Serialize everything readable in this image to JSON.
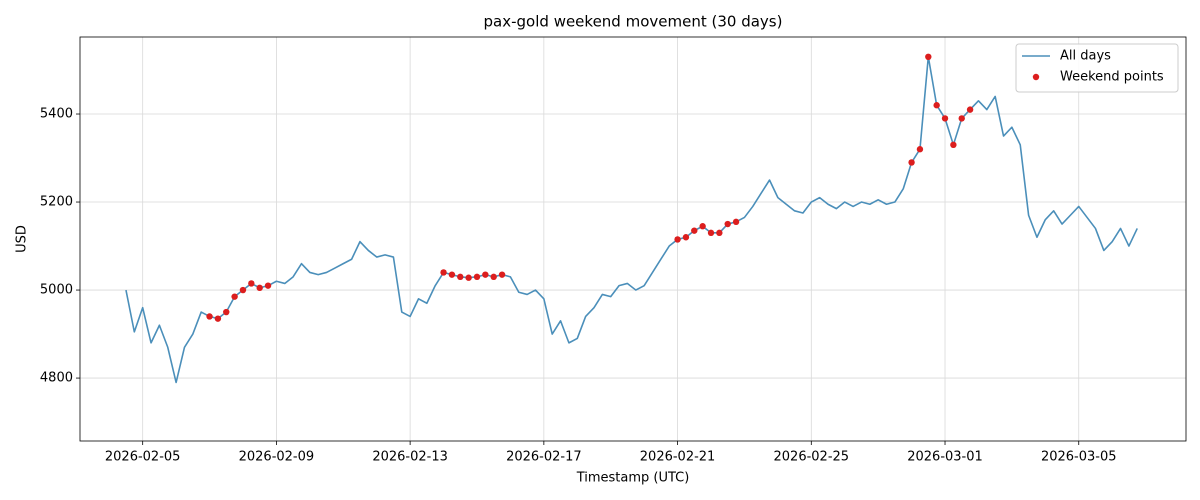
{
  "chart_data": {
    "type": "line",
    "title": "pax-gold weekend movement (30 days)",
    "x_label": "Timestamp (UTC)",
    "y_label": "USD",
    "xlim": [
      "2026-02-03 03:00",
      "2026-03-08 05:00"
    ],
    "ylim": [
      4657,
      5575
    ],
    "xticks": [
      "2026-02-05",
      "2026-02-09",
      "2026-02-13",
      "2026-02-17",
      "2026-02-21",
      "2026-02-25",
      "2026-03-01",
      "2026-03-05"
    ],
    "yticks": [
      4800,
      5000,
      5200,
      5400
    ],
    "grid": true,
    "legend": "upper right",
    "series": [
      {
        "name": "All days",
        "type": "line",
        "color": "#4b8fba",
        "x": [
          "2026-02-04 12:00",
          "2026-02-04 18:00",
          "2026-02-05 00:00",
          "2026-02-05 06:00",
          "2026-02-05 12:00",
          "2026-02-05 18:00",
          "2026-02-06 00:00",
          "2026-02-06 06:00",
          "2026-02-06 12:00",
          "2026-02-06 18:00",
          "2026-02-07 00:00",
          "2026-02-07 06:00",
          "2026-02-07 12:00",
          "2026-02-07 18:00",
          "2026-02-08 00:00",
          "2026-02-08 06:00",
          "2026-02-08 12:00",
          "2026-02-08 18:00",
          "2026-02-09 00:00",
          "2026-02-09 06:00",
          "2026-02-09 12:00",
          "2026-02-09 18:00",
          "2026-02-10 00:00",
          "2026-02-10 06:00",
          "2026-02-10 12:00",
          "2026-02-10 18:00",
          "2026-02-11 00:00",
          "2026-02-11 06:00",
          "2026-02-11 12:00",
          "2026-02-11 18:00",
          "2026-02-12 00:00",
          "2026-02-12 06:00",
          "2026-02-12 12:00",
          "2026-02-12 18:00",
          "2026-02-13 00:00",
          "2026-02-13 06:00",
          "2026-02-13 12:00",
          "2026-02-13 18:00",
          "2026-02-14 00:00",
          "2026-02-14 06:00",
          "2026-02-14 12:00",
          "2026-02-14 18:00",
          "2026-02-15 00:00",
          "2026-02-15 06:00",
          "2026-02-15 12:00",
          "2026-02-15 18:00",
          "2026-02-16 00:00",
          "2026-02-16 06:00",
          "2026-02-16 12:00",
          "2026-02-16 18:00",
          "2026-02-17 00:00",
          "2026-02-17 06:00",
          "2026-02-17 12:00",
          "2026-02-17 18:00",
          "2026-02-18 00:00",
          "2026-02-18 06:00",
          "2026-02-18 12:00",
          "2026-02-18 18:00",
          "2026-02-19 00:00",
          "2026-02-19 06:00",
          "2026-02-19 12:00",
          "2026-02-19 18:00",
          "2026-02-20 00:00",
          "2026-02-20 06:00",
          "2026-02-20 12:00",
          "2026-02-20 18:00",
          "2026-02-21 00:00",
          "2026-02-21 06:00",
          "2026-02-21 12:00",
          "2026-02-21 18:00",
          "2026-02-22 00:00",
          "2026-02-22 06:00",
          "2026-02-22 12:00",
          "2026-02-22 18:00",
          "2026-02-23 00:00",
          "2026-02-23 06:00",
          "2026-02-23 12:00",
          "2026-02-23 18:00",
          "2026-02-24 00:00",
          "2026-02-24 06:00",
          "2026-02-24 12:00",
          "2026-02-24 18:00",
          "2026-02-25 00:00",
          "2026-02-25 06:00",
          "2026-02-25 12:00",
          "2026-02-25 18:00",
          "2026-02-26 00:00",
          "2026-02-26 06:00",
          "2026-02-26 12:00",
          "2026-02-26 18:00",
          "2026-02-27 00:00",
          "2026-02-27 06:00",
          "2026-02-27 12:00",
          "2026-02-27 18:00",
          "2026-02-28 00:00",
          "2026-02-28 06:00",
          "2026-02-28 12:00",
          "2026-02-28 18:00",
          "2026-03-01 00:00",
          "2026-03-01 06:00",
          "2026-03-01 12:00",
          "2026-03-01 18:00",
          "2026-03-02 00:00",
          "2026-03-02 06:00",
          "2026-03-02 12:00",
          "2026-03-02 18:00",
          "2026-03-03 00:00",
          "2026-03-03 06:00",
          "2026-03-03 12:00",
          "2026-03-03 18:00",
          "2026-03-04 00:00",
          "2026-03-04 06:00",
          "2026-03-04 12:00",
          "2026-03-04 18:00",
          "2026-03-05 00:00",
          "2026-03-05 06:00",
          "2026-03-05 12:00",
          "2026-03-05 18:00",
          "2026-03-06 00:00",
          "2026-03-06 06:00",
          "2026-03-06 12:00",
          "2026-03-06 18:00"
        ],
        "values": [
          5000,
          4905,
          4960,
          4880,
          4920,
          4870,
          4790,
          4870,
          4900,
          4950,
          4940,
          4935,
          4950,
          4985,
          5000,
          5015,
          5005,
          5010,
          5020,
          5015,
          5030,
          5060,
          5040,
          5035,
          5040,
          5050,
          5060,
          5070,
          5110,
          5090,
          5075,
          5080,
          5075,
          4950,
          4940,
          4980,
          4970,
          5010,
          5040,
          5035,
          5030,
          5028,
          5030,
          5035,
          5030,
          5035,
          5030,
          4995,
          4990,
          5000,
          4980,
          4900,
          4930,
          4880,
          4890,
          4940,
          4960,
          4990,
          4985,
          5010,
          5015,
          5000,
          5010,
          5040,
          5070,
          5100,
          5115,
          5120,
          5135,
          5145,
          5130,
          5130,
          5150,
          5155,
          5165,
          5190,
          5220,
          5250,
          5210,
          5195,
          5180,
          5175,
          5200,
          5210,
          5195,
          5185,
          5200,
          5190,
          5200,
          5195,
          5205,
          5195,
          5200,
          5230,
          5290,
          5320,
          5530,
          5420,
          5390,
          5330,
          5390,
          5410,
          5430,
          5410,
          5440,
          5350,
          5370,
          5330,
          5170,
          5120,
          5160,
          5180,
          5150,
          5170,
          5190,
          5165,
          5140,
          5090,
          5110,
          5140,
          5100,
          5140
        ]
      },
      {
        "name": "Weekend points",
        "type": "scatter",
        "color": "#dc1e1e",
        "x": [
          "2026-02-07 00:00",
          "2026-02-07 06:00",
          "2026-02-07 12:00",
          "2026-02-07 18:00",
          "2026-02-08 00:00",
          "2026-02-08 06:00",
          "2026-02-08 12:00",
          "2026-02-08 18:00",
          "2026-02-14 00:00",
          "2026-02-14 06:00",
          "2026-02-14 12:00",
          "2026-02-14 18:00",
          "2026-02-15 00:00",
          "2026-02-15 06:00",
          "2026-02-15 12:00",
          "2026-02-15 18:00",
          "2026-02-21 00:00",
          "2026-02-21 06:00",
          "2026-02-21 12:00",
          "2026-02-21 18:00",
          "2026-02-22 00:00",
          "2026-02-22 06:00",
          "2026-02-22 12:00",
          "2026-02-22 18:00",
          "2026-02-28 00:00",
          "2026-02-28 06:00",
          "2026-02-28 12:00",
          "2026-02-28 18:00",
          "2026-03-01 00:00",
          "2026-03-01 06:00",
          "2026-03-01 12:00",
          "2026-03-01 18:00"
        ],
        "values": [
          4940,
          4935,
          4950,
          4985,
          5000,
          5015,
          5005,
          5010,
          5040,
          5035,
          5030,
          5028,
          5030,
          5035,
          5030,
          5035,
          5115,
          5120,
          5135,
          5145,
          5130,
          5130,
          5150,
          5155,
          5290,
          5320,
          5530,
          5420,
          5390,
          5330,
          5390,
          5410
        ]
      }
    ]
  }
}
